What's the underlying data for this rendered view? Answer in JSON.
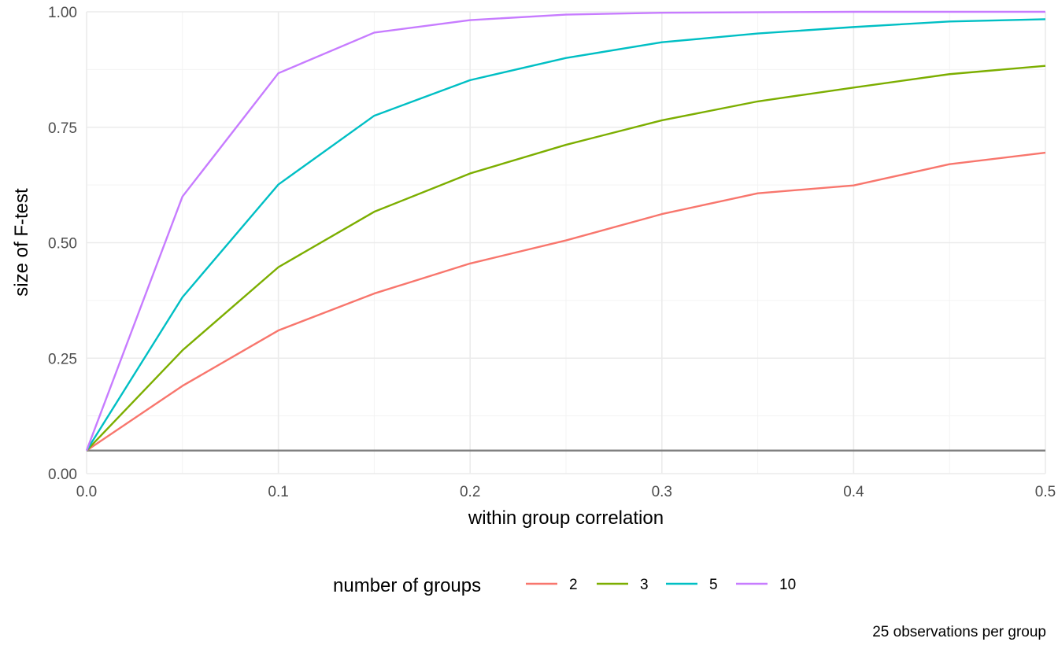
{
  "chart_data": {
    "type": "line",
    "xlabel": "within group correlation",
    "ylabel": "size of F-test",
    "xlim": [
      0,
      0.5
    ],
    "ylim": [
      0,
      1
    ],
    "x_ticks": [
      0.0,
      0.1,
      0.2,
      0.3,
      0.4,
      0.5
    ],
    "x_tick_labels": [
      "0.0",
      "0.1",
      "0.2",
      "0.3",
      "0.4",
      "0.5"
    ],
    "y_ticks": [
      0,
      0.25,
      0.5,
      0.75,
      1
    ],
    "y_tick_labels": [
      "0.00",
      "0.25",
      "0.50",
      "0.75",
      "1.00"
    ],
    "grid": true,
    "legend": {
      "title": "number of groups",
      "position": "bottom"
    },
    "caption": "25 observations per group",
    "reference_line": {
      "y": 0.05,
      "color": "#7f7f7f"
    },
    "x": [
      0.0,
      0.05,
      0.1,
      0.15,
      0.2,
      0.25,
      0.3,
      0.35,
      0.4,
      0.45,
      0.5
    ],
    "series": [
      {
        "name": "2",
        "color": "#F8766D",
        "values": [
          0.05,
          0.19,
          0.31,
          0.39,
          0.455,
          0.505,
          0.562,
          0.607,
          0.624,
          0.67,
          0.695
        ]
      },
      {
        "name": "3",
        "color": "#7CAE00",
        "values": [
          0.05,
          0.267,
          0.447,
          0.567,
          0.65,
          0.712,
          0.765,
          0.806,
          0.836,
          0.865,
          0.883
        ]
      },
      {
        "name": "5",
        "color": "#00BFC4",
        "values": [
          0.05,
          0.382,
          0.626,
          0.775,
          0.852,
          0.9,
          0.934,
          0.953,
          0.967,
          0.979,
          0.984
        ]
      },
      {
        "name": "10",
        "color": "#C77CFF",
        "values": [
          0.05,
          0.6,
          0.867,
          0.955,
          0.982,
          0.994,
          0.998,
          0.999,
          1.0,
          1.0,
          1.0
        ]
      }
    ]
  }
}
